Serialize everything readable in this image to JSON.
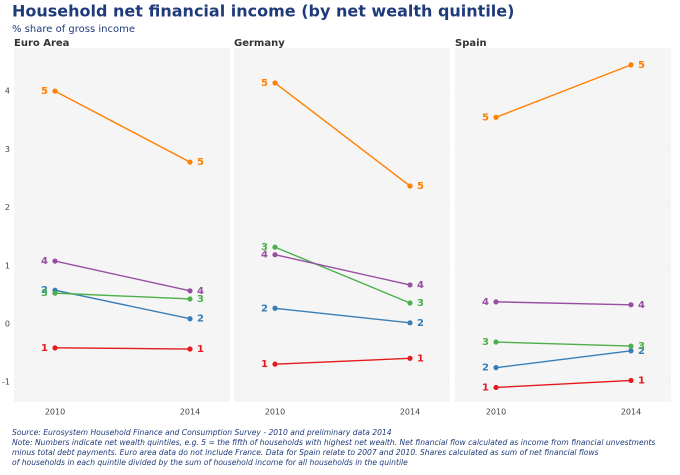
{
  "title": "Household net financial income (by net wealth quintile)",
  "subtitle": "% share of gross income",
  "notes": [
    "Source: Eurosystem Household Finance and Consumption Survey - 2010 and preliminary data 2014",
    "Note: Numbers indicate net wealth quintiles, e.g. 5 = the fifth of households with highest net wealth. Net financial flow calculated as income from financial unvestments",
    "minus total debt payments. Euro area data do not include France. Data for Spain relate to 2007 and 2010. Shares calculated as sum of net financial flows",
    "of households in each quintile divided by the sum of household income for all households in the quintile"
  ],
  "chart_data": [
    {
      "type": "line",
      "title": "Euro Area",
      "categories": [
        "2010",
        "2014"
      ],
      "ylim": [
        -1.34,
        4.74
      ],
      "yticks": [
        -1,
        0,
        1,
        2,
        3,
        4
      ],
      "series": [
        {
          "name": "1",
          "color": "#e41a1c",
          "values": [
            -0.41,
            -0.43
          ]
        },
        {
          "name": "2",
          "color": "#377eb8",
          "values": [
            0.58,
            0.09
          ]
        },
        {
          "name": "3",
          "color": "#4daf4a",
          "values": [
            0.53,
            0.43
          ]
        },
        {
          "name": "4",
          "color": "#984ea3",
          "values": [
            1.08,
            0.57
          ]
        },
        {
          "name": "5",
          "color": "#ff7f00",
          "values": [
            4.0,
            2.78
          ]
        }
      ]
    },
    {
      "type": "line",
      "title": "Germany",
      "categories": [
        "2010",
        "2014"
      ],
      "ylim": [
        -1.34,
        4.74
      ],
      "yticks": [
        -1,
        0,
        1,
        2,
        3,
        4
      ],
      "series": [
        {
          "name": "1",
          "color": "#e41a1c",
          "values": [
            -0.69,
            -0.59
          ]
        },
        {
          "name": "2",
          "color": "#377eb8",
          "values": [
            0.27,
            0.02
          ]
        },
        {
          "name": "3",
          "color": "#4daf4a",
          "values": [
            1.32,
            0.36
          ]
        },
        {
          "name": "4",
          "color": "#984ea3",
          "values": [
            1.19,
            0.67
          ]
        },
        {
          "name": "5",
          "color": "#ff7f00",
          "values": [
            4.14,
            2.37
          ]
        }
      ]
    },
    {
      "type": "line",
      "title": "Spain",
      "categories": [
        "2010",
        "2014"
      ],
      "ylim": [
        -1.34,
        4.74
      ],
      "yticks": [
        -1,
        0,
        1,
        2,
        3,
        4
      ],
      "series": [
        {
          "name": "1",
          "color": "#e41a1c",
          "values": [
            -1.09,
            -0.97
          ]
        },
        {
          "name": "2",
          "color": "#377eb8",
          "values": [
            -0.75,
            -0.46
          ]
        },
        {
          "name": "3",
          "color": "#4daf4a",
          "values": [
            -0.31,
            -0.38
          ]
        },
        {
          "name": "4",
          "color": "#984ea3",
          "values": [
            0.38,
            0.33
          ]
        },
        {
          "name": "5",
          "color": "#ff7f00",
          "values": [
            3.55,
            4.45
          ]
        }
      ]
    }
  ]
}
